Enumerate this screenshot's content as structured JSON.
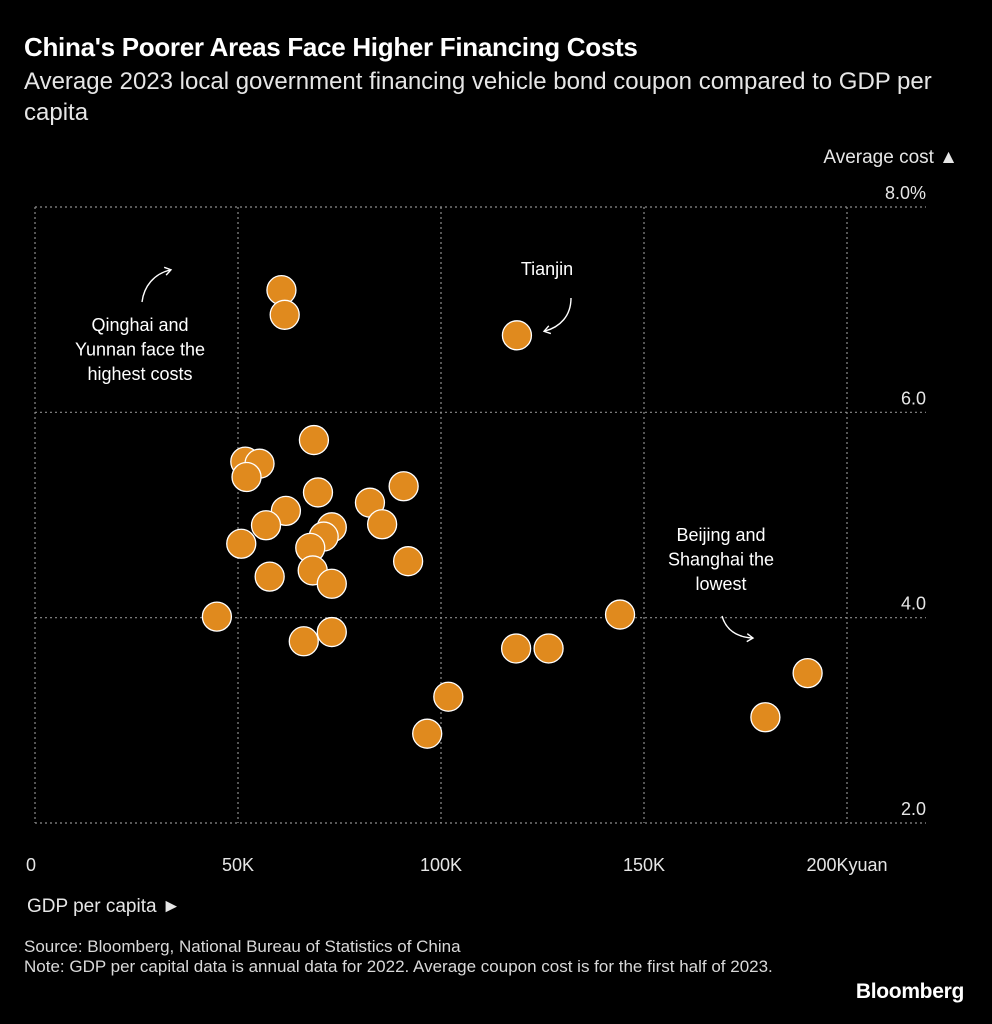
{
  "header": {
    "title": "China's Poorer Areas Face Higher Financing Costs",
    "subtitle": "Average 2023 local government financing vehicle bond coupon compared to GDP per capita"
  },
  "footer": {
    "source": "Source: Bloomberg, National Bureau of Statistics of China",
    "note": "Note: GDP per capital data is annual data for 2022. Average coupon cost is for the first half of 2023.",
    "brand": "Bloomberg"
  },
  "colors": {
    "background": "#000000",
    "point": "#E08A1E",
    "point_stroke": "#FFFFFF",
    "grid": "#8c8c8c",
    "text": "#FFFFFF"
  },
  "chart_data": {
    "type": "scatter",
    "xlabel": "GDP per capita ►",
    "ylabel": "Average cost ▲",
    "xlim": [
      0,
      200000
    ],
    "ylim": [
      2,
      8
    ],
    "x_ticks": [
      0,
      50000,
      100000,
      150000,
      200000
    ],
    "x_tick_labels": [
      "0",
      "50K",
      "100K",
      "150K",
      "200K"
    ],
    "x_unit_label": "yuan",
    "y_ticks": [
      2,
      4,
      6,
      8
    ],
    "y_tick_labels": [
      "2.0",
      "4.0",
      "6.0",
      "8.0%"
    ],
    "annotations": [
      {
        "text": "Qinghai and Yunnan face the highest costs",
        "lines": [
          "Qinghai and",
          "Yunnan face the",
          "highest costs"
        ]
      },
      {
        "text": "Tianjin",
        "lines": [
          "Tianjin"
        ]
      },
      {
        "text": "Beijing and Shanghai the lowest",
        "lines": [
          "Beijing and",
          "Shanghai the",
          "lowest"
        ]
      }
    ],
    "points": [
      {
        "x": 60700,
        "y": 7.19
      },
      {
        "x": 61500,
        "y": 6.95
      },
      {
        "x": 118700,
        "y": 6.75
      },
      {
        "x": 68700,
        "y": 5.73
      },
      {
        "x": 51800,
        "y": 5.52
      },
      {
        "x": 55300,
        "y": 5.5
      },
      {
        "x": 52100,
        "y": 5.37
      },
      {
        "x": 69700,
        "y": 5.22
      },
      {
        "x": 90800,
        "y": 5.28
      },
      {
        "x": 82500,
        "y": 5.12
      },
      {
        "x": 61800,
        "y": 5.04
      },
      {
        "x": 56900,
        "y": 4.9
      },
      {
        "x": 73100,
        "y": 4.88
      },
      {
        "x": 71100,
        "y": 4.79
      },
      {
        "x": 85500,
        "y": 4.91
      },
      {
        "x": 50800,
        "y": 4.72
      },
      {
        "x": 67800,
        "y": 4.68
      },
      {
        "x": 91900,
        "y": 4.55
      },
      {
        "x": 68400,
        "y": 4.46
      },
      {
        "x": 57800,
        "y": 4.4
      },
      {
        "x": 73100,
        "y": 4.33
      },
      {
        "x": 44800,
        "y": 4.01
      },
      {
        "x": 144100,
        "y": 4.03
      },
      {
        "x": 66200,
        "y": 3.77
      },
      {
        "x": 73100,
        "y": 3.86
      },
      {
        "x": 118500,
        "y": 3.7
      },
      {
        "x": 126500,
        "y": 3.7
      },
      {
        "x": 101800,
        "y": 3.23
      },
      {
        "x": 96600,
        "y": 2.87
      },
      {
        "x": 190300,
        "y": 3.46
      },
      {
        "x": 179900,
        "y": 3.03
      }
    ]
  }
}
